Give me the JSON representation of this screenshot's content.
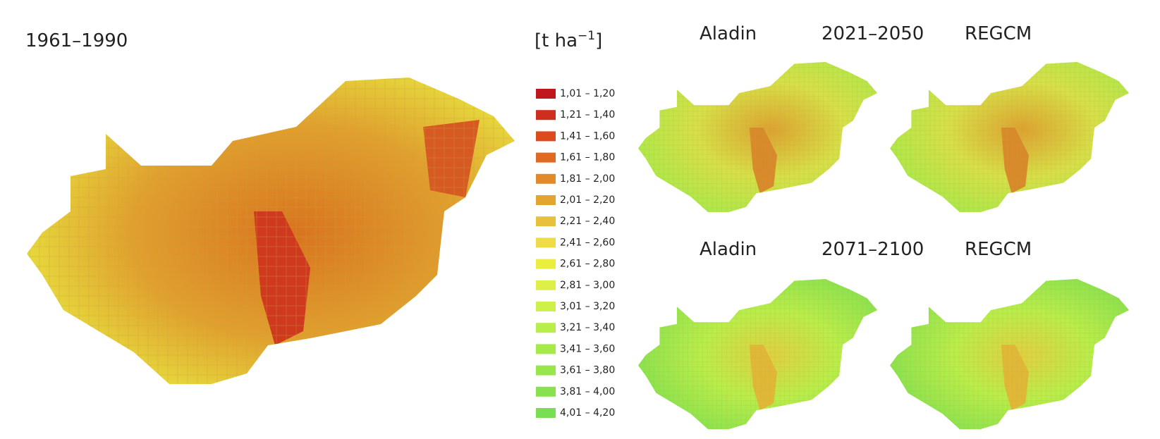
{
  "maps": {
    "baseline_title": "1961–1990",
    "unit": {
      "open": "[t ha",
      "sup": "−1",
      "close": "]"
    },
    "scenarios": [
      {
        "period": "2021–2050",
        "left_model": "Aladin",
        "right_model": "REGCM"
      },
      {
        "period": "2071–2100",
        "left_model": "Aladin",
        "right_model": "REGCM"
      }
    ]
  },
  "legend": [
    {
      "label": "1,01 – 1,20",
      "color": "#c0171c"
    },
    {
      "label": "1,21 – 1,40",
      "color": "#cf2e1f"
    },
    {
      "label": "1,41 – 1,60",
      "color": "#dc4a20"
    },
    {
      "label": "1,61 – 1,80",
      "color": "#e06a24"
    },
    {
      "label": "1,81 – 2,00",
      "color": "#e08a2c"
    },
    {
      "label": "2,01 – 2,20",
      "color": "#e3a530"
    },
    {
      "label": "2,21 – 2,40",
      "color": "#e8c13c"
    },
    {
      "label": "2,41 – 2,60",
      "color": "#eedb45"
    },
    {
      "label": "2,61 – 2,80",
      "color": "#ebee3f"
    },
    {
      "label": "2,81 – 3,00",
      "color": "#def048"
    },
    {
      "label": "3,01 – 3,20",
      "color": "#cdf04b"
    },
    {
      "label": "3,21 – 3,40",
      "color": "#b8ee4a"
    },
    {
      "label": "3,41 – 3,60",
      "color": "#a6ea4a"
    },
    {
      "label": "3,61 – 3,80",
      "color": "#96e64c"
    },
    {
      "label": "3,81 – 4,00",
      "color": "#88e24f"
    },
    {
      "label": "4,01 – 4,20",
      "color": "#7ade52"
    }
  ]
}
